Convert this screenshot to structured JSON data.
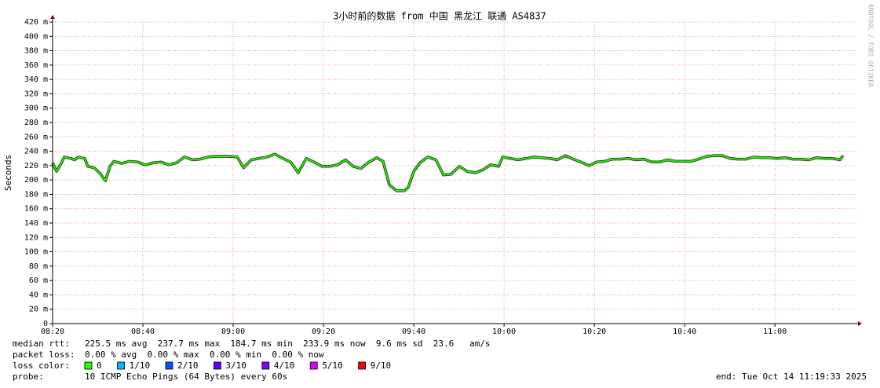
{
  "chart_data": {
    "type": "line",
    "title": "3小时前的数据 from 中国 黑龙江 联通 AS4837",
    "y_label": "Seconds",
    "watermark": "RRDTOOL / TOBI OETIKER",
    "xlim": [
      500,
      678.4
    ],
    "xticks": [
      {
        "value": 500,
        "label": "08:20"
      },
      {
        "value": 520,
        "label": "08:40"
      },
      {
        "value": 540,
        "label": "09:00"
      },
      {
        "value": 560,
        "label": "09:20"
      },
      {
        "value": 580,
        "label": "09:40"
      },
      {
        "value": 600,
        "label": "10:00"
      },
      {
        "value": 620,
        "label": "10:20"
      },
      {
        "value": 640,
        "label": "10:40"
      },
      {
        "value": 660,
        "label": "11:00"
      }
    ],
    "ylim": [
      0,
      0.42
    ],
    "yticks": [
      0,
      {
        "value": 0.02,
        "label": "20 m"
      },
      {
        "value": 0.04,
        "label": "40 m"
      },
      {
        "value": 0.06,
        "label": "60 m"
      },
      {
        "value": 0.08,
        "label": "80 m"
      },
      {
        "value": 0.1,
        "label": "100 m"
      },
      {
        "value": 0.12,
        "label": "120 m"
      },
      {
        "value": 0.14,
        "label": "140 m"
      },
      {
        "value": 0.16,
        "label": "160 m"
      },
      {
        "value": 0.18,
        "label": "180 m"
      },
      {
        "value": 0.2,
        "label": "200 m"
      },
      {
        "value": 0.22,
        "label": "220 m"
      },
      {
        "value": 0.24,
        "label": "240 m"
      },
      {
        "value": 0.26,
        "label": "260 m"
      },
      {
        "value": 0.28,
        "label": "280 m"
      },
      {
        "value": 0.3,
        "label": "300 m"
      },
      {
        "value": 0.32,
        "label": "320 m"
      },
      {
        "value": 0.34,
        "label": "340 m"
      },
      {
        "value": 0.36,
        "label": "360 m"
      },
      {
        "value": 0.38,
        "label": "380 m"
      },
      {
        "value": 0.4,
        "label": "400 m"
      },
      {
        "value": 0.42,
        "label": "420 m"
      }
    ],
    "grid": true,
    "x": [
      500.0,
      500.9,
      501.9,
      502.6,
      504.0,
      504.9,
      505.7,
      507.1,
      507.8,
      509.2,
      510.4,
      511.7,
      512.7,
      513.6,
      515.3,
      517.0,
      518.8,
      520.5,
      522.3,
      524.0,
      525.7,
      527.5,
      529.2,
      531.0,
      532.7,
      534.4,
      536.2,
      538.8,
      540.9,
      542.3,
      544.0,
      545.7,
      547.5,
      549.2,
      551.0,
      552.7,
      554.4,
      556.2,
      557.9,
      559.7,
      561.4,
      563.1,
      564.9,
      566.6,
      568.3,
      570.1,
      571.8,
      573.2,
      574.6,
      576.2,
      577.9,
      578.8,
      580.0,
      581.4,
      583.1,
      584.9,
      586.6,
      588.3,
      590.1,
      591.8,
      593.6,
      595.3,
      597.0,
      598.8,
      599.7,
      601.4,
      603.1,
      604.9,
      606.6,
      608.3,
      610.1,
      611.8,
      613.6,
      615.3,
      617.0,
      618.8,
      620.5,
      622.3,
      624.0,
      625.7,
      627.5,
      629.2,
      631.0,
      632.7,
      634.4,
      636.2,
      637.9,
      639.7,
      641.4,
      643.1,
      644.9,
      646.6,
      648.3,
      650.1,
      651.8,
      653.6,
      655.3,
      657.0,
      658.8,
      660.5,
      662.3,
      664.0,
      665.7,
      667.5,
      669.2,
      671.0,
      672.7,
      674.4,
      675.1
    ],
    "series": [
      {
        "name": "median rtt:",
        "color": "#22ee00",
        "values": [
          0.224,
          0.212,
          0.223,
          0.232,
          0.23,
          0.228,
          0.232,
          0.23,
          0.219,
          0.217,
          0.21,
          0.199,
          0.219,
          0.226,
          0.223,
          0.226,
          0.225,
          0.221,
          0.224,
          0.225,
          0.221,
          0.224,
          0.232,
          0.228,
          0.229,
          0.232,
          0.233,
          0.233,
          0.232,
          0.217,
          0.228,
          0.23,
          0.232,
          0.236,
          0.23,
          0.225,
          0.21,
          0.23,
          0.225,
          0.219,
          0.219,
          0.221,
          0.228,
          0.219,
          0.216,
          0.225,
          0.231,
          0.226,
          0.193,
          0.185,
          0.185,
          0.19,
          0.212,
          0.224,
          0.232,
          0.228,
          0.207,
          0.208,
          0.219,
          0.212,
          0.21,
          0.214,
          0.221,
          0.219,
          0.232,
          0.23,
          0.228,
          0.23,
          0.232,
          0.231,
          0.23,
          0.228,
          0.234,
          0.229,
          0.225,
          0.22,
          0.225,
          0.226,
          0.229,
          0.229,
          0.23,
          0.228,
          0.229,
          0.225,
          0.225,
          0.228,
          0.226,
          0.226,
          0.226,
          0.229,
          0.233,
          0.234,
          0.234,
          0.23,
          0.229,
          0.229,
          0.232,
          0.231,
          0.231,
          0.23,
          0.231,
          0.229,
          0.229,
          0.228,
          0.231,
          0.23,
          0.23,
          0.228,
          0.234
        ]
      }
    ],
    "median_stats": "225.5 ms avg  237.7 ms max  184.7 ms min  233.9 ms now  9.6 ms sd  23.6   am/s",
    "packet_loss_label": "packet loss:",
    "packet_loss_stats": "0.00 % avg  0.00 % max  0.00 % min  0.00 % now",
    "loss_color_label": "loss color:",
    "loss_colors": [
      {
        "label": "0",
        "color": "#26ff00"
      },
      {
        "label": "1/10",
        "color": "#00b8ff"
      },
      {
        "label": "2/10",
        "color": "#0059ff"
      },
      {
        "label": "3/10",
        "color": "#5e00ff"
      },
      {
        "label": "4/10",
        "color": "#7e00ff"
      },
      {
        "label": "5/10",
        "color": "#dd00ff"
      },
      {
        "label": "9/10",
        "color": "#ff0000"
      }
    ],
    "probe_label": "probe:",
    "probe": "10 ICMP Echo Pings (64 Bytes) every 60s",
    "end": "end: Tue Oct 14 11:19:33 2025"
  }
}
